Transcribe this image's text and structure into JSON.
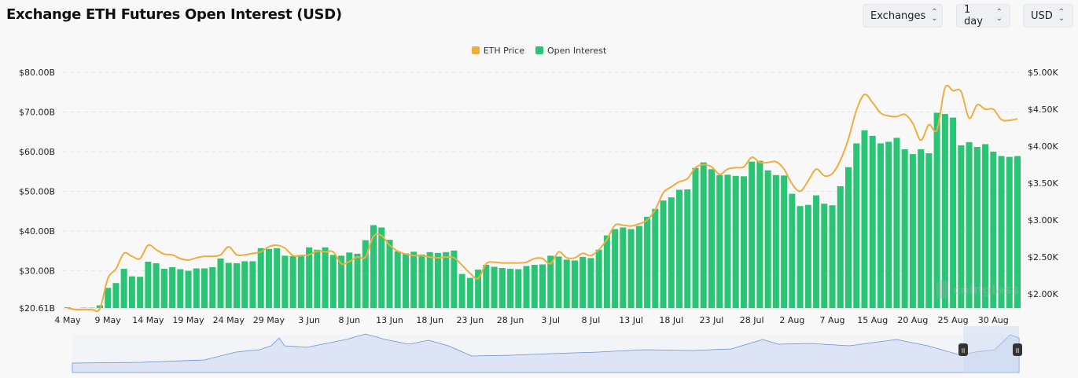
{
  "header": {
    "title": "Exchange ETH Futures Open Interest (USD)"
  },
  "controls": [
    {
      "label": "Exchanges",
      "icon": "chevron-up-down-icon"
    },
    {
      "label": "1 day",
      "icon": "chevron-up-down-icon"
    },
    {
      "label": "USD",
      "icon": "chevron-up-down-icon"
    }
  ],
  "watermark": "coinglass",
  "colors": {
    "bars": "#2ac574",
    "line": "#f0ad3c",
    "navigator": "#dce4f5",
    "navigator_line": "#6c8fd6"
  },
  "chart_data": {
    "type": "bar+line",
    "legend_placement": "top-center",
    "grid": true,
    "series": [
      {
        "name": "ETH Price",
        "type": "line",
        "axis": "right",
        "values": [
          1.81,
          1.79,
          1.79,
          1.79,
          1.8,
          2.21,
          2.34,
          2.55,
          2.51,
          2.48,
          2.66,
          2.6,
          2.54,
          2.53,
          2.48,
          2.46,
          2.49,
          2.51,
          2.51,
          2.53,
          2.64,
          2.53,
          2.53,
          2.55,
          2.57,
          2.64,
          2.66,
          2.62,
          2.52,
          2.52,
          2.53,
          2.58,
          2.57,
          2.57,
          2.41,
          2.44,
          2.5,
          2.5,
          2.78,
          2.79,
          2.66,
          2.58,
          2.54,
          2.52,
          2.52,
          2.5,
          2.49,
          2.5,
          2.49,
          2.39,
          2.28,
          2.21,
          2.41,
          2.43,
          2.42,
          2.42,
          2.42,
          2.43,
          2.48,
          2.48,
          2.41,
          2.57,
          2.49,
          2.49,
          2.55,
          2.52,
          2.6,
          2.74,
          2.93,
          2.93,
          2.92,
          2.95,
          3.0,
          3.14,
          3.37,
          3.45,
          3.52,
          3.56,
          3.71,
          3.75,
          3.72,
          3.62,
          3.69,
          3.71,
          3.72,
          3.85,
          3.78,
          3.78,
          3.79,
          3.69,
          3.49,
          3.39,
          3.53,
          3.69,
          3.6,
          3.63,
          3.81,
          4.1,
          4.49,
          4.7,
          4.59,
          4.45,
          4.41,
          4.4,
          4.43,
          4.31,
          4.08,
          4.29,
          4.22,
          4.79,
          4.75,
          4.74,
          4.38,
          4.56,
          4.5,
          4.5,
          4.36,
          4.35,
          4.37
        ]
      },
      {
        "name": "Open Interest",
        "type": "bar",
        "axis": "left",
        "values": [
          20.8,
          20.6,
          20.7,
          20.7,
          21.3,
          25.7,
          26.9,
          30.5,
          28.6,
          28.5,
          32.3,
          31.9,
          30.5,
          30.9,
          30.4,
          30.0,
          30.6,
          30.6,
          30.9,
          33.1,
          32.0,
          31.9,
          32.4,
          32.4,
          35.7,
          35.5,
          35.7,
          33.8,
          33.7,
          34.0,
          35.9,
          35.3,
          35.9,
          34.0,
          33.8,
          34.6,
          34.3,
          37.7,
          41.5,
          40.9,
          37.8,
          34.9,
          34.4,
          34.8,
          34.1,
          34.7,
          34.5,
          34.7,
          35.1,
          29.2,
          28.2,
          30.3,
          31.5,
          31.0,
          30.7,
          30.5,
          30.4,
          31.2,
          31.5,
          31.6,
          33.8,
          33.6,
          32.8,
          32.6,
          33.5,
          33.2,
          35.3,
          38.9,
          40.5,
          40.9,
          40.5,
          41.3,
          43.6,
          45.6,
          47.7,
          48.5,
          50.4,
          50.5,
          55.9,
          57.3,
          55.6,
          54.1,
          54.2,
          53.9,
          53.8,
          57.5,
          57.7,
          55.3,
          54.1,
          54.0,
          49.4,
          46.3,
          46.6,
          49.0,
          46.9,
          46.5,
          51.3,
          56.1,
          62.1,
          65.4,
          64.0,
          62.1,
          62.5,
          63.5,
          60.6,
          59.4,
          60.6,
          59.6,
          69.8,
          69.5,
          68.6,
          61.6,
          62.4,
          61.2,
          61.9,
          60.0,
          58.9,
          58.7,
          58.9
        ]
      }
    ],
    "x_tick_labels": [
      "4 May",
      "9 May",
      "14 May",
      "19 May",
      "24 May",
      "29 May",
      "3 Jun",
      "8 Jun",
      "13 Jun",
      "18 Jun",
      "23 Jun",
      "28 Jun",
      "3 Jul",
      "8 Jul",
      "13 Jul",
      "18 Jul",
      "23 Jul",
      "28 Jul",
      "2 Aug",
      "7 Aug",
      "15 Aug",
      "20 Aug",
      "25 Aug",
      "30 Aug"
    ],
    "x_tick_every": 5,
    "left_axis": {
      "unit": "USD billions",
      "ylim": [
        20.61,
        80
      ],
      "tick_values": [
        20.61,
        30,
        40,
        50,
        60,
        70,
        80
      ],
      "tick_labels": [
        "$20.61B",
        "$30.00B",
        "$40.00B",
        "$50.00B",
        "$60.00B",
        "$70.00B",
        "$80.00B"
      ]
    },
    "right_axis": {
      "unit": "USD thousands",
      "ylim": [
        1.81,
        5.0
      ],
      "tick_values": [
        2,
        2.5,
        3,
        3.5,
        4,
        4.5,
        5
      ],
      "tick_labels": [
        "$2.00K",
        "$2.50K",
        "$3.00K",
        "$3.50K",
        "$4.00K",
        "$4.50K",
        "$5.00K"
      ]
    },
    "navigator": {
      "selected_range": "last ~4 months of full history"
    }
  }
}
